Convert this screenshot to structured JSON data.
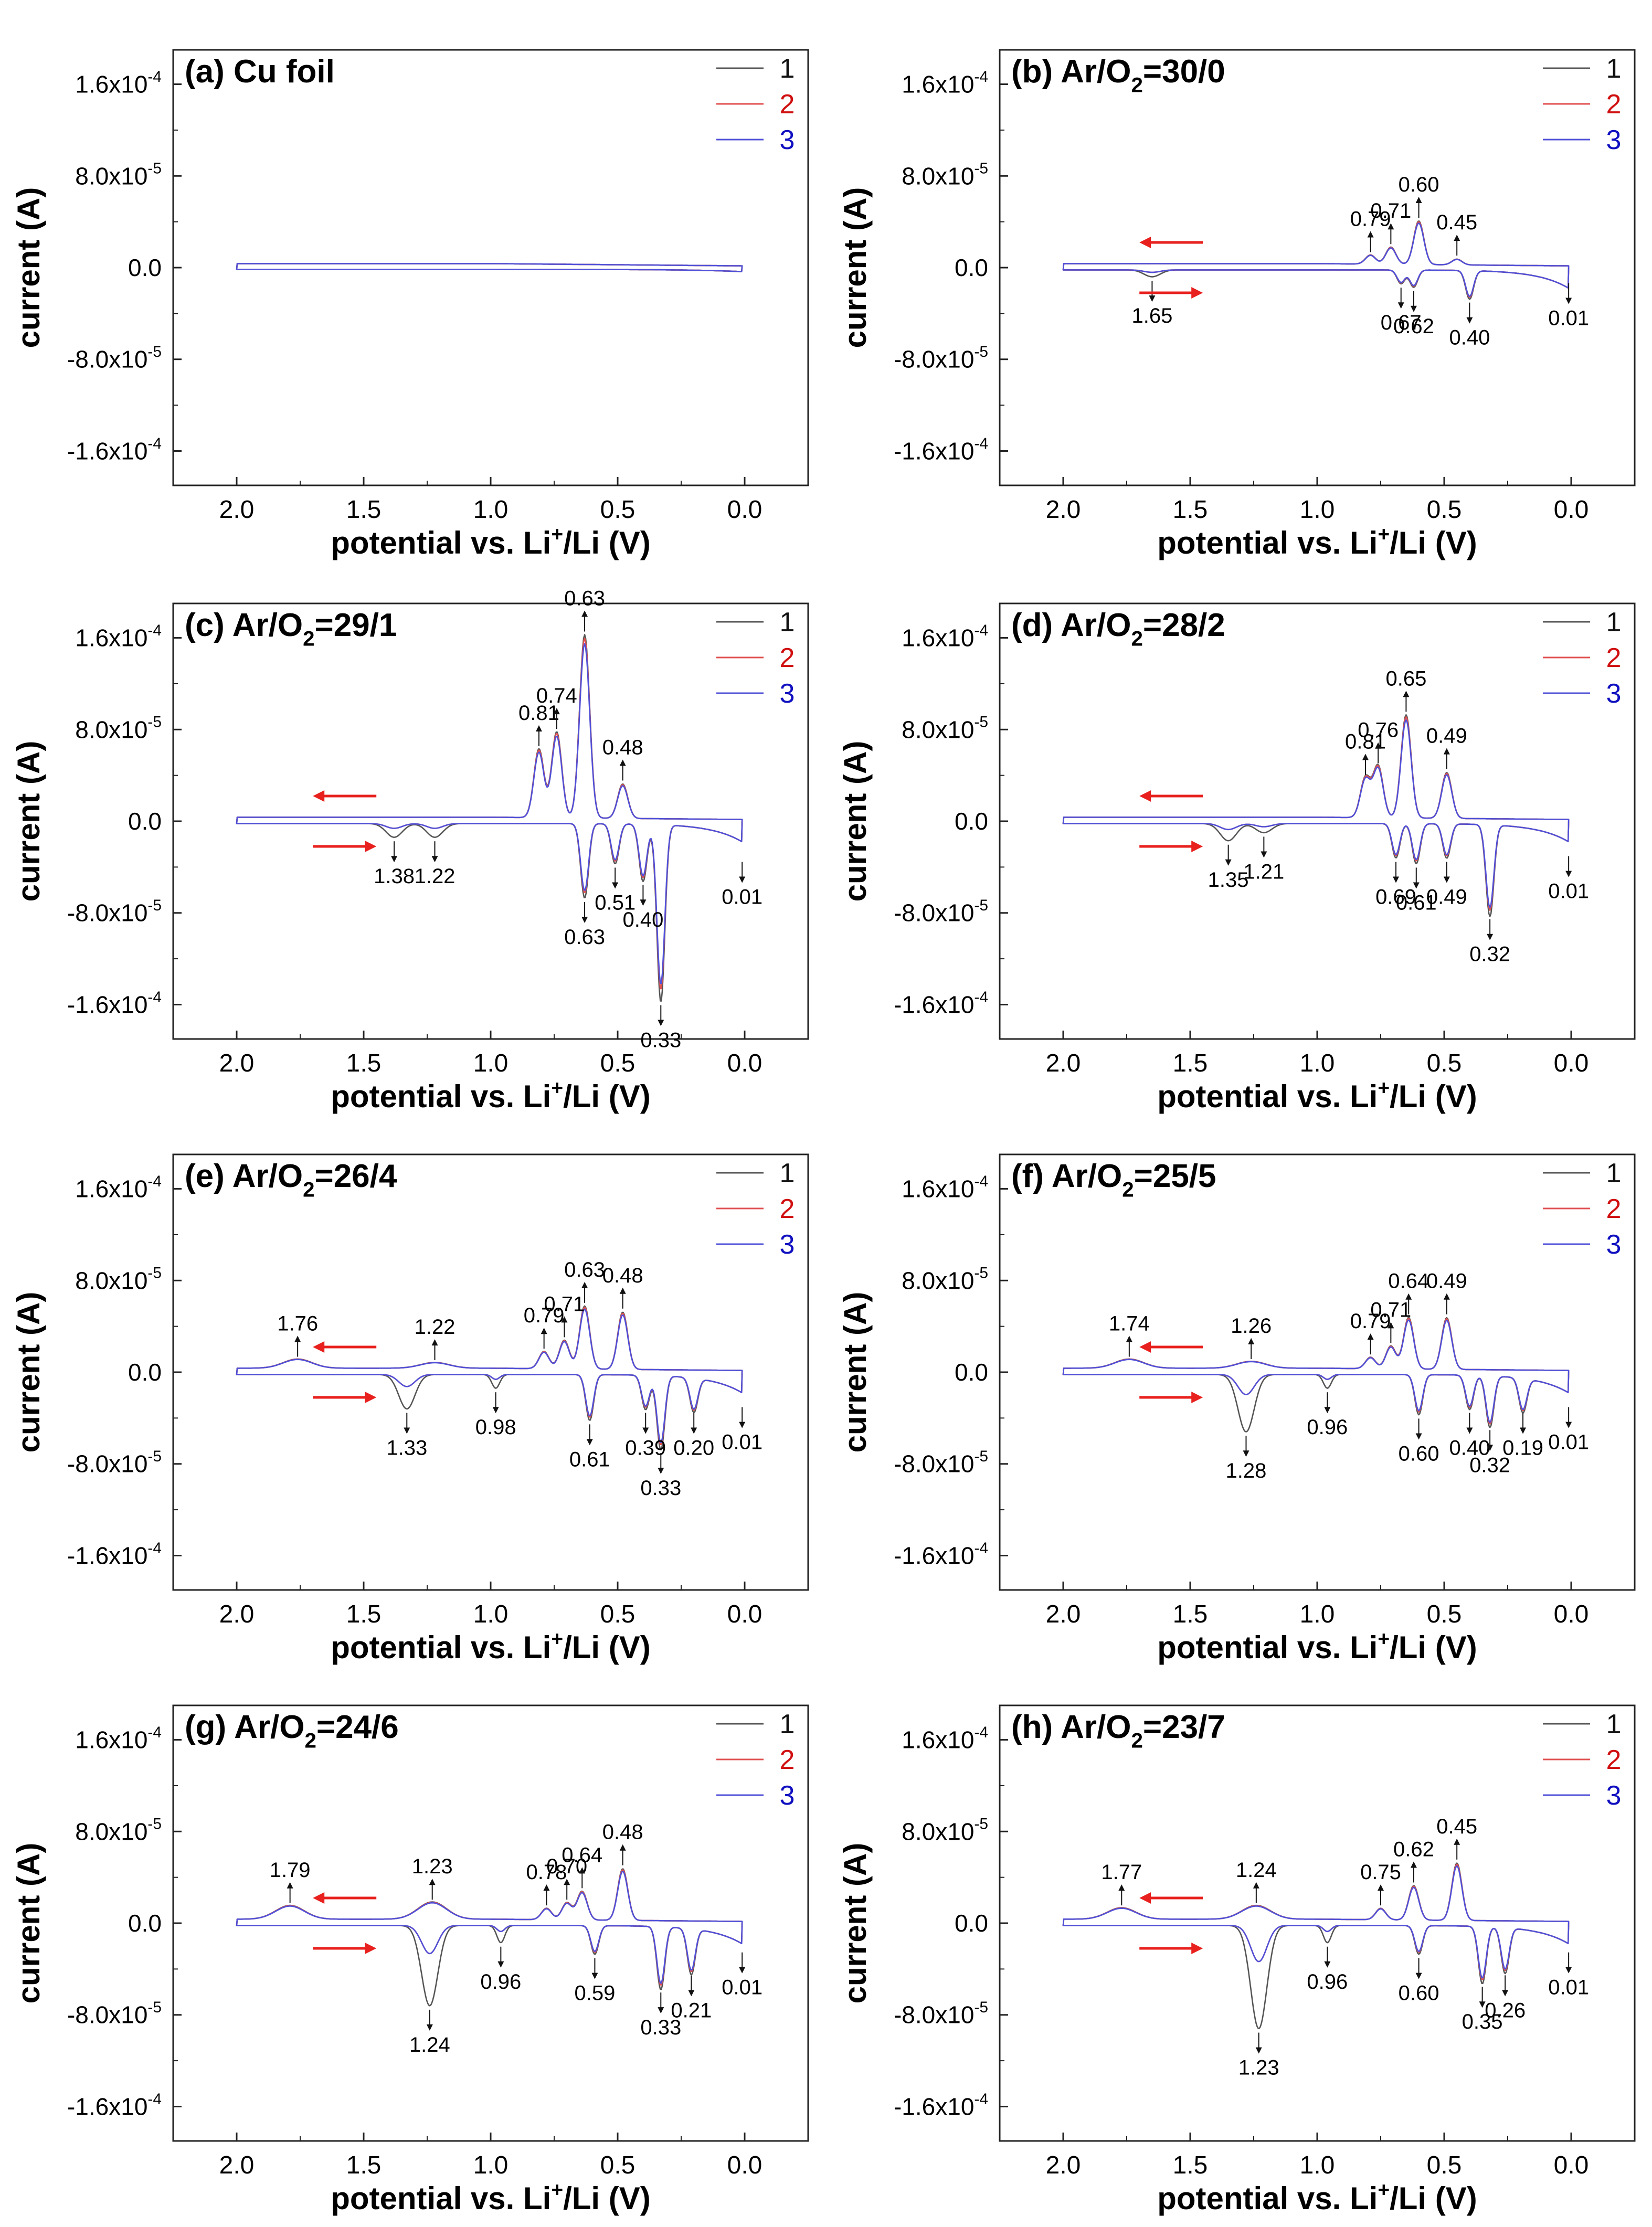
{
  "figure": {
    "legend_entries": [
      {
        "label": "1",
        "color": "#555555"
      },
      {
        "label": "2",
        "color": "#e05050"
      },
      {
        "label": "3",
        "color": "#5050d8"
      }
    ],
    "arrow_color": "#e8201e"
  },
  "chart_data": [
    {
      "panel": "a",
      "title": "(a) Cu foil",
      "type": "line",
      "xlabel": "potential vs. Li+/Li (V)",
      "ylabel": "current (A)",
      "xlim": [
        2.25,
        -0.25
      ],
      "ylim": [
        -0.00019,
        0.00019
      ],
      "x_reversed": true,
      "x_ticks": [
        "2.0",
        "1.5",
        "1.0",
        "0.5",
        "0.0"
      ],
      "x_tick_values": [
        2.0,
        1.5,
        1.0,
        0.5,
        0.0
      ],
      "y_ticks": [
        "1.6x10-4",
        "8.0x10-5",
        "0.0",
        "-8.0x10-5",
        "-1.6x10-4"
      ],
      "y_tick_values": [
        0.00016,
        8e-05,
        0,
        -8e-05,
        -0.00016
      ],
      "series": [
        {
          "name": "1"
        },
        {
          "name": "2"
        },
        {
          "name": "3"
        }
      ],
      "lithiation_peaks": [],
      "delithiation_peaks": [],
      "peak_labels": [],
      "direction_arrows": false
    },
    {
      "panel": "b",
      "title": "(b) Ar/O2=30/0",
      "type": "line",
      "xlabel": "potential vs. Li+/Li (V)",
      "ylabel": "current (A)",
      "xlim": [
        2.25,
        -0.25
      ],
      "ylim": [
        -0.00019,
        0.00019
      ],
      "x_reversed": true,
      "x_ticks": [
        "2.0",
        "1.5",
        "1.0",
        "0.5",
        "0.0"
      ],
      "x_tick_values": [
        2.0,
        1.5,
        1.0,
        0.5,
        0.0
      ],
      "y_ticks": [
        "1.6x10-4",
        "8.0x10-5",
        "0.0",
        "-8.0x10-5",
        "-1.6x10-4"
      ],
      "y_tick_values": [
        0.00016,
        8e-05,
        0,
        -8e-05,
        -0.00016
      ],
      "series": [
        {
          "name": "1"
        },
        {
          "name": "2"
        },
        {
          "name": "3"
        }
      ],
      "lithiation_peaks": [
        [
          1.65,
          -6e-06
        ],
        [
          0.67,
          -1.2e-05
        ],
        [
          0.62,
          -1.5e-05
        ],
        [
          0.4,
          -2.5e-05
        ]
      ],
      "delithiation_peaks": [
        [
          0.79,
          8e-06
        ],
        [
          0.71,
          1.5e-05
        ],
        [
          0.6,
          3.8e-05
        ],
        [
          0.45,
          5e-06
        ]
      ],
      "peak_labels": [
        {
          "text": "0.79",
          "x": 0.79,
          "y": 8e-06
        },
        {
          "text": "0.71",
          "x": 0.71,
          "y": 1.5e-05
        },
        {
          "text": "0.60",
          "x": 0.6,
          "y": 3.8e-05
        },
        {
          "text": "0.45",
          "x": 0.45,
          "y": 5e-06
        },
        {
          "text": "1.65",
          "x": 1.65,
          "y": -6e-06
        },
        {
          "text": "0.67",
          "x": 0.67,
          "y": -1.2e-05
        },
        {
          "text": "0.62",
          "x": 0.62,
          "y": -1.5e-05
        },
        {
          "text": "0.40",
          "x": 0.4,
          "y": -2.5e-05
        },
        {
          "text": "0.01",
          "x": 0.01,
          "y": -8e-06
        }
      ],
      "direction_arrows": true
    },
    {
      "panel": "c",
      "title": "(c) Ar/O2=29/1",
      "type": "line",
      "xlabel": "potential vs. Li+/Li (V)",
      "ylabel": "current (A)",
      "xlim": [
        2.25,
        -0.25
      ],
      "ylim": [
        -0.00019,
        0.00019
      ],
      "x_reversed": true,
      "x_ticks": [
        "2.0",
        "1.5",
        "1.0",
        "0.5",
        "0.0"
      ],
      "x_tick_values": [
        2.0,
        1.5,
        1.0,
        0.5,
        0.0
      ],
      "y_ticks": [
        "1.6x10-4",
        "8.0x10-5",
        "0.0",
        "-8.0x10-5",
        "-1.6x10-4"
      ],
      "y_tick_values": [
        0.00016,
        8e-05,
        0,
        -8e-05,
        -0.00016
      ],
      "series": [
        {
          "name": "1"
        },
        {
          "name": "2"
        },
        {
          "name": "3"
        }
      ],
      "lithiation_peaks": [
        [
          1.38,
          -1.2e-05
        ],
        [
          1.22,
          -1.2e-05
        ],
        [
          0.63,
          -6.5e-05
        ],
        [
          0.51,
          -3.5e-05
        ],
        [
          0.4,
          -5e-05
        ],
        [
          0.33,
          -0.000155
        ]
      ],
      "delithiation_peaks": [
        [
          0.81,
          6e-05
        ],
        [
          0.74,
          7.5e-05
        ],
        [
          0.63,
          0.00016
        ],
        [
          0.48,
          3e-05
        ]
      ],
      "peak_labels": [
        {
          "text": "0.81",
          "x": 0.81,
          "y": 6e-05
        },
        {
          "text": "0.74",
          "x": 0.74,
          "y": 7.5e-05
        },
        {
          "text": "0.63",
          "x": 0.63,
          "y": 0.00016
        },
        {
          "text": "0.48",
          "x": 0.48,
          "y": 3e-05
        },
        {
          "text": "1.38",
          "x": 1.38,
          "y": -1.2e-05
        },
        {
          "text": "1.22",
          "x": 1.22,
          "y": -1.2e-05
        },
        {
          "text": "0.63",
          "x": 0.63,
          "y": -6.5e-05
        },
        {
          "text": "0.51",
          "x": 0.51,
          "y": -3.5e-05
        },
        {
          "text": "0.40",
          "x": 0.4,
          "y": -5e-05
        },
        {
          "text": "0.33",
          "x": 0.33,
          "y": -0.000155
        },
        {
          "text": "0.01",
          "x": 0.01,
          "y": -3e-05
        }
      ],
      "direction_arrows": true
    },
    {
      "panel": "d",
      "title": "(d) Ar/O2=28/2",
      "type": "line",
      "xlabel": "potential vs. Li+/Li (V)",
      "ylabel": "current (A)",
      "xlim": [
        2.25,
        -0.25
      ],
      "ylim": [
        -0.00019,
        0.00019
      ],
      "x_reversed": true,
      "x_ticks": [
        "2.0",
        "1.5",
        "1.0",
        "0.5",
        "0.0"
      ],
      "x_tick_values": [
        2.0,
        1.5,
        1.0,
        0.5,
        0.0
      ],
      "y_ticks": [
        "1.6x10-4",
        "8.0x10-5",
        "0.0",
        "-8.0x10-5",
        "-1.6x10-4"
      ],
      "y_tick_values": [
        0.00016,
        8e-05,
        0,
        -8e-05,
        -0.00016
      ],
      "series": [
        {
          "name": "1"
        },
        {
          "name": "2"
        },
        {
          "name": "3"
        }
      ],
      "lithiation_peaks": [
        [
          1.35,
          -1.5e-05
        ],
        [
          1.21,
          -8e-06
        ],
        [
          0.69,
          -3e-05
        ],
        [
          0.61,
          -3.5e-05
        ],
        [
          0.49,
          -3e-05
        ],
        [
          0.32,
          -8e-05
        ]
      ],
      "delithiation_peaks": [
        [
          0.81,
          3.5e-05
        ],
        [
          0.76,
          4.5e-05
        ],
        [
          0.65,
          9e-05
        ],
        [
          0.49,
          4e-05
        ]
      ],
      "peak_labels": [
        {
          "text": "0.81",
          "x": 0.81,
          "y": 3.5e-05
        },
        {
          "text": "0.76",
          "x": 0.76,
          "y": 4.5e-05
        },
        {
          "text": "0.65",
          "x": 0.65,
          "y": 9e-05
        },
        {
          "text": "0.49",
          "x": 0.49,
          "y": 4e-05
        },
        {
          "text": "1.35",
          "x": 1.35,
          "y": -1.5e-05
        },
        {
          "text": "1.21",
          "x": 1.21,
          "y": -8e-06
        },
        {
          "text": "0.69",
          "x": 0.69,
          "y": -3e-05
        },
        {
          "text": "0.61",
          "x": 0.61,
          "y": -3.5e-05
        },
        {
          "text": "0.49",
          "x": 0.49,
          "y": -3e-05
        },
        {
          "text": "0.32",
          "x": 0.32,
          "y": -8e-05
        },
        {
          "text": "0.01",
          "x": 0.01,
          "y": -2.5e-05
        }
      ],
      "direction_arrows": true
    },
    {
      "panel": "e",
      "title": "(e) Ar/O2=26/4",
      "type": "line",
      "xlabel": "potential vs. Li+/Li (V)",
      "ylabel": "current (A)",
      "xlim": [
        2.25,
        -0.25
      ],
      "ylim": [
        -0.00019,
        0.00019
      ],
      "x_reversed": true,
      "x_ticks": [
        "2.0",
        "1.5",
        "1.0",
        "0.5",
        "0.0"
      ],
      "x_tick_values": [
        2.0,
        1.5,
        1.0,
        0.5,
        0.0
      ],
      "y_ticks": [
        "1.6x10-4",
        "8.0x10-5",
        "0.0",
        "-8.0x10-5",
        "-1.6x10-4"
      ],
      "y_tick_values": [
        0.00016,
        8e-05,
        0,
        -8e-05,
        -0.00016
      ],
      "series": [
        {
          "name": "1"
        },
        {
          "name": "2"
        },
        {
          "name": "3"
        }
      ],
      "lithiation_peaks": [
        [
          1.33,
          -3e-05
        ],
        [
          0.98,
          -1.2e-05
        ],
        [
          0.61,
          -4e-05
        ],
        [
          0.39,
          -3e-05
        ],
        [
          0.33,
          -6.5e-05
        ],
        [
          0.2,
          -3e-05
        ]
      ],
      "delithiation_peaks": [
        [
          1.76,
          8e-06
        ],
        [
          1.22,
          5e-06
        ],
        [
          0.79,
          1.5e-05
        ],
        [
          0.71,
          2.5e-05
        ],
        [
          0.63,
          5.5e-05
        ],
        [
          0.48,
          5e-05
        ]
      ],
      "peak_labels": [
        {
          "text": "1.76",
          "x": 1.76,
          "y": 8e-06
        },
        {
          "text": "1.22",
          "x": 1.22,
          "y": 5e-06
        },
        {
          "text": "0.79",
          "x": 0.79,
          "y": 1.5e-05
        },
        {
          "text": "0.71",
          "x": 0.71,
          "y": 2.5e-05
        },
        {
          "text": "0.63",
          "x": 0.63,
          "y": 5.5e-05
        },
        {
          "text": "0.48",
          "x": 0.48,
          "y": 5e-05
        },
        {
          "text": "1.33",
          "x": 1.33,
          "y": -3e-05
        },
        {
          "text": "0.98",
          "x": 0.98,
          "y": -1.2e-05
        },
        {
          "text": "0.61",
          "x": 0.61,
          "y": -4e-05
        },
        {
          "text": "0.39",
          "x": 0.39,
          "y": -3e-05
        },
        {
          "text": "0.33",
          "x": 0.33,
          "y": -6.5e-05
        },
        {
          "text": "0.20",
          "x": 0.2,
          "y": -3e-05
        },
        {
          "text": "0.01",
          "x": 0.01,
          "y": -2.5e-05
        }
      ],
      "direction_arrows": true
    },
    {
      "panel": "f",
      "title": "(f) Ar/O2=25/5",
      "type": "line",
      "xlabel": "potential vs. Li+/Li (V)",
      "ylabel": "current (A)",
      "xlim": [
        2.25,
        -0.25
      ],
      "ylim": [
        -0.00019,
        0.00019
      ],
      "x_reversed": true,
      "x_ticks": [
        "2.0",
        "1.5",
        "1.0",
        "0.5",
        "0.0"
      ],
      "x_tick_values": [
        2.0,
        1.5,
        1.0,
        0.5,
        0.0
      ],
      "y_ticks": [
        "1.6x10-4",
        "8.0x10-5",
        "0.0",
        "-8.0x10-5",
        "-1.6x10-4"
      ],
      "y_tick_values": [
        0.00016,
        8e-05,
        0,
        -8e-05,
        -0.00016
      ],
      "series": [
        {
          "name": "1"
        },
        {
          "name": "2"
        },
        {
          "name": "3"
        }
      ],
      "lithiation_peaks": [
        [
          1.28,
          -5e-05
        ],
        [
          0.96,
          -1.2e-05
        ],
        [
          0.6,
          -3.5e-05
        ],
        [
          0.4,
          -3e-05
        ],
        [
          0.32,
          -4.5e-05
        ],
        [
          0.19,
          -3e-05
        ]
      ],
      "delithiation_peaks": [
        [
          1.74,
          8e-06
        ],
        [
          1.26,
          6e-06
        ],
        [
          0.79,
          1e-05
        ],
        [
          0.71,
          2e-05
        ],
        [
          0.64,
          4.5e-05
        ],
        [
          0.49,
          4.5e-05
        ]
      ],
      "peak_labels": [
        {
          "text": "1.74",
          "x": 1.74,
          "y": 8e-06
        },
        {
          "text": "1.26",
          "x": 1.26,
          "y": 6e-06
        },
        {
          "text": "0.79",
          "x": 0.79,
          "y": 1e-05
        },
        {
          "text": "0.71",
          "x": 0.71,
          "y": 2e-05
        },
        {
          "text": "0.64",
          "x": 0.64,
          "y": 4.5e-05
        },
        {
          "text": "0.49",
          "x": 0.49,
          "y": 4.5e-05
        },
        {
          "text": "1.28",
          "x": 1.28,
          "y": -5e-05
        },
        {
          "text": "0.96",
          "x": 0.96,
          "y": -1.2e-05
        },
        {
          "text": "0.60",
          "x": 0.6,
          "y": -3.5e-05
        },
        {
          "text": "0.40",
          "x": 0.4,
          "y": -3e-05
        },
        {
          "text": "0.32",
          "x": 0.32,
          "y": -4.5e-05
        },
        {
          "text": "0.19",
          "x": 0.19,
          "y": -3e-05
        },
        {
          "text": "0.01",
          "x": 0.01,
          "y": -2.5e-05
        }
      ],
      "direction_arrows": true
    },
    {
      "panel": "g",
      "title": "(g) Ar/O2=24/6",
      "type": "line",
      "xlabel": "potential vs. Li+/Li (V)",
      "ylabel": "current (A)",
      "xlim": [
        2.25,
        -0.25
      ],
      "ylim": [
        -0.00019,
        0.00019
      ],
      "x_reversed": true,
      "x_ticks": [
        "2.0",
        "1.5",
        "1.0",
        "0.5",
        "0.0"
      ],
      "x_tick_values": [
        2.0,
        1.5,
        1.0,
        0.5,
        0.0
      ],
      "y_ticks": [
        "1.6x10-4",
        "8.0x10-5",
        "0.0",
        "-8.0x10-5",
        "-1.6x10-4"
      ],
      "y_tick_values": [
        0.00016,
        8e-05,
        0,
        -8e-05,
        -0.00016
      ],
      "series": [
        {
          "name": "1"
        },
        {
          "name": "2"
        },
        {
          "name": "3"
        }
      ],
      "lithiation_peaks": [
        [
          1.24,
          -7e-05
        ],
        [
          0.96,
          -1.5e-05
        ],
        [
          0.59,
          -2.5e-05
        ],
        [
          0.33,
          -5.5e-05
        ],
        [
          0.21,
          -4e-05
        ]
      ],
      "delithiation_peaks": [
        [
          1.79,
          1.2e-05
        ],
        [
          1.23,
          1.5e-05
        ],
        [
          0.78,
          1e-05
        ],
        [
          0.7,
          1.5e-05
        ],
        [
          0.64,
          2.5e-05
        ],
        [
          0.48,
          4.5e-05
        ]
      ],
      "peak_labels": [
        {
          "text": "1.79",
          "x": 1.79,
          "y": 1.2e-05
        },
        {
          "text": "1.23",
          "x": 1.23,
          "y": 1.5e-05
        },
        {
          "text": "0.78",
          "x": 0.78,
          "y": 1e-05
        },
        {
          "text": "0.70",
          "x": 0.7,
          "y": 1.5e-05
        },
        {
          "text": "0.64",
          "x": 0.64,
          "y": 2.5e-05
        },
        {
          "text": "0.48",
          "x": 0.48,
          "y": 4.5e-05
        },
        {
          "text": "1.24",
          "x": 1.24,
          "y": -7e-05
        },
        {
          "text": "0.96",
          "x": 0.96,
          "y": -1.5e-05
        },
        {
          "text": "0.59",
          "x": 0.59,
          "y": -2.5e-05
        },
        {
          "text": "0.33",
          "x": 0.33,
          "y": -5.5e-05
        },
        {
          "text": "0.21",
          "x": 0.21,
          "y": -4e-05
        },
        {
          "text": "0.01",
          "x": 0.01,
          "y": -2e-05
        }
      ],
      "direction_arrows": true
    },
    {
      "panel": "h",
      "title": "(h) Ar/O2=23/7",
      "type": "line",
      "xlabel": "potential vs. Li+/Li (V)",
      "ylabel": "current (A)",
      "xlim": [
        2.25,
        -0.25
      ],
      "ylim": [
        -0.00019,
        0.00019
      ],
      "x_reversed": true,
      "x_ticks": [
        "2.0",
        "1.5",
        "1.0",
        "0.5",
        "0.0"
      ],
      "x_tick_values": [
        2.0,
        1.5,
        1.0,
        0.5,
        0.0
      ],
      "y_ticks": [
        "1.6x10-4",
        "8.0x10-5",
        "0.0",
        "-8.0x10-5",
        "-1.6x10-4"
      ],
      "y_tick_values": [
        0.00016,
        8e-05,
        0,
        -8e-05,
        -0.00016
      ],
      "series": [
        {
          "name": "1"
        },
        {
          "name": "2"
        },
        {
          "name": "3"
        }
      ],
      "lithiation_peaks": [
        [
          1.23,
          -9e-05
        ],
        [
          0.96,
          -1.5e-05
        ],
        [
          0.6,
          -2.5e-05
        ],
        [
          0.35,
          -5e-05
        ],
        [
          0.26,
          -4e-05
        ]
      ],
      "delithiation_peaks": [
        [
          1.77,
          1e-05
        ],
        [
          1.24,
          1.2e-05
        ],
        [
          0.75,
          1e-05
        ],
        [
          0.62,
          3e-05
        ],
        [
          0.45,
          5e-05
        ]
      ],
      "peak_labels": [
        {
          "text": "1.77",
          "x": 1.77,
          "y": 1e-05
        },
        {
          "text": "1.24",
          "x": 1.24,
          "y": 1.2e-05
        },
        {
          "text": "0.75",
          "x": 0.75,
          "y": 1e-05
        },
        {
          "text": "0.62",
          "x": 0.62,
          "y": 3e-05
        },
        {
          "text": "0.45",
          "x": 0.45,
          "y": 5e-05
        },
        {
          "text": "1.23",
          "x": 1.23,
          "y": -9e-05
        },
        {
          "text": "0.96",
          "x": 0.96,
          "y": -1.5e-05
        },
        {
          "text": "0.60",
          "x": 0.6,
          "y": -2.5e-05
        },
        {
          "text": "0.35",
          "x": 0.35,
          "y": -5e-05
        },
        {
          "text": "0.26",
          "x": 0.26,
          "y": -4e-05
        },
        {
          "text": "0.01",
          "x": 0.01,
          "y": -2e-05
        }
      ],
      "direction_arrows": true
    }
  ]
}
